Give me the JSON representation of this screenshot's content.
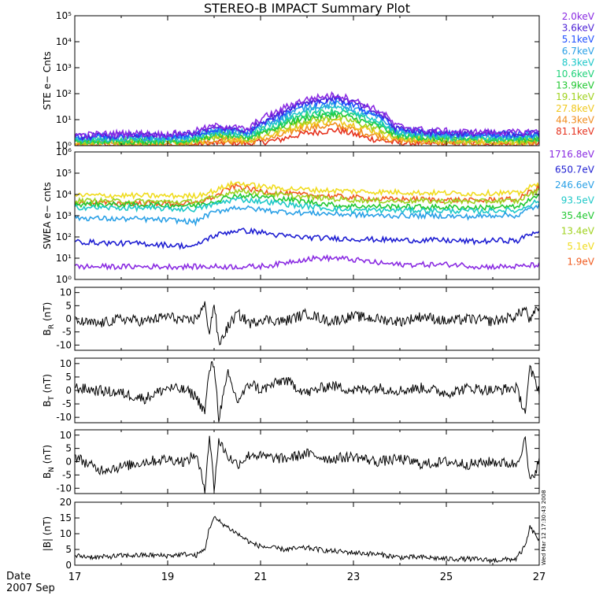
{
  "title": "STEREO-B IMPACT Summary Plot",
  "stamp": "Wed Mar 12 17:30:43 2008",
  "date_label": "Date",
  "date_value": "2007 Sep",
  "chart_data": [
    {
      "id": "ste",
      "type": "line",
      "ylabel": "STE e− Cnts",
      "yscale": "log",
      "ylim": [
        1,
        100000
      ],
      "yticks": [
        "10⁰",
        "10¹",
        "10²",
        "10³",
        "10⁴",
        "10⁵"
      ],
      "xlim": [
        17,
        27
      ],
      "series": [
        {
          "name": "2.0keV",
          "color": "#8a2be2",
          "values": [
            2.5,
            2.8,
            3,
            2.7,
            3.2,
            6,
            4,
            20,
            60,
            90,
            35,
            6,
            4,
            3.5,
            3.3,
            3.2,
            3.5
          ]
        },
        {
          "name": "3.6keV",
          "color": "#4b1fd6",
          "values": [
            2.2,
            2.4,
            2.6,
            2.4,
            2.8,
            5,
            3.5,
            15,
            50,
            70,
            28,
            5,
            3.5,
            3,
            3,
            2.9,
            3
          ]
        },
        {
          "name": "5.1keV",
          "color": "#2050ff",
          "values": [
            2,
            2.2,
            2.3,
            2.2,
            2.5,
            4.5,
            3.2,
            12,
            40,
            55,
            22,
            4.5,
            3.2,
            2.8,
            2.7,
            2.6,
            2.8
          ]
        },
        {
          "name": "6.7keV",
          "color": "#2aa0e6",
          "values": [
            1.8,
            2,
            2.1,
            2,
            2.2,
            4,
            3,
            10,
            30,
            40,
            18,
            4,
            3,
            2.5,
            2.5,
            2.4,
            2.5
          ]
        },
        {
          "name": "8.3keV",
          "color": "#1ec8c8",
          "values": [
            1.6,
            1.8,
            1.9,
            1.8,
            2,
            3.5,
            2.6,
            8,
            22,
            30,
            14,
            3.5,
            2.6,
            2.2,
            2.2,
            2.1,
            2.2
          ]
        },
        {
          "name": "10.6keV",
          "color": "#1fd27a",
          "values": [
            1.5,
            1.6,
            1.7,
            1.6,
            1.8,
            3,
            2.3,
            6,
            16,
            22,
            10,
            3,
            2.3,
            2,
            2,
            1.9,
            2
          ]
        },
        {
          "name": "13.9keV",
          "color": "#22c832",
          "values": [
            1.4,
            1.5,
            1.5,
            1.5,
            1.6,
            2.6,
            2,
            5,
            12,
            16,
            8,
            2.6,
            2,
            1.8,
            1.8,
            1.7,
            1.8
          ]
        },
        {
          "name": "19.1keV",
          "color": "#a0d21e",
          "values": [
            1.3,
            1.35,
            1.4,
            1.35,
            1.45,
            2.2,
            1.8,
            4,
            9,
            12,
            6,
            2.2,
            1.8,
            1.6,
            1.6,
            1.5,
            1.6
          ]
        },
        {
          "name": "27.8keV",
          "color": "#f0c81e",
          "values": [
            1.2,
            1.25,
            1.3,
            1.25,
            1.3,
            1.9,
            1.6,
            3,
            7,
            9,
            4.5,
            1.9,
            1.6,
            1.45,
            1.45,
            1.4,
            1.45
          ]
        },
        {
          "name": "44.3keV",
          "color": "#f08c1e",
          "values": [
            1.1,
            1.12,
            1.15,
            1.12,
            1.15,
            1.6,
            1.4,
            2.2,
            5,
            6,
            3,
            1.6,
            1.4,
            1.3,
            1.3,
            1.25,
            1.3
          ]
        },
        {
          "name": "81.1keV",
          "color": "#e6321e",
          "values": [
            1,
            1.02,
            1.05,
            1.02,
            1.05,
            1.3,
            1.2,
            1.6,
            3,
            4,
            2,
            1.3,
            1.2,
            1.15,
            1.15,
            1.12,
            1.15
          ]
        }
      ]
    },
    {
      "id": "swea",
      "type": "line",
      "ylabel": "SWEA e− cnts",
      "yscale": "log",
      "ylim": [
        1,
        1000000
      ],
      "yticks": [
        "10⁰",
        "10¹",
        "10²",
        "10³",
        "10⁴",
        "10⁵",
        "10⁶"
      ],
      "xlim": [
        17,
        27
      ],
      "series": [
        {
          "name": "1716.8eV",
          "color": "#8a2be2",
          "values": [
            4,
            4,
            4,
            4,
            4,
            4,
            4,
            4,
            4,
            4,
            5,
            8,
            10,
            10,
            8,
            6,
            5,
            5,
            5,
            5,
            4,
            4,
            4,
            5
          ]
        },
        {
          "name": "650.7eV",
          "color": "#1e1ed2",
          "values": [
            60,
            55,
            50,
            50,
            45,
            40,
            35,
            120,
            200,
            180,
            120,
            100,
            90,
            85,
            80,
            75,
            70,
            70,
            70,
            65,
            60,
            70,
            65,
            200
          ]
        },
        {
          "name": "246.6eV",
          "color": "#2aa0e6",
          "values": [
            800,
            750,
            700,
            700,
            650,
            600,
            500,
            1500,
            2500,
            2000,
            1600,
            1400,
            1300,
            1200,
            1100,
            1000,
            1000,
            1000,
            1000,
            900,
            900,
            1100,
            1000,
            3000
          ]
        },
        {
          "name": "93.5eV",
          "color": "#1ec8c8",
          "values": [
            2500,
            2400,
            2300,
            2300,
            2200,
            2100,
            2000,
            3500,
            6000,
            5000,
            4000,
            3000,
            2500,
            2000,
            1800,
            1800,
            1800,
            1800,
            1700,
            1700,
            1600,
            1800,
            1700,
            5000
          ]
        },
        {
          "name": "35.4eV",
          "color": "#22c832",
          "values": [
            3500,
            3400,
            3300,
            3300,
            3200,
            3100,
            3000,
            5000,
            9000,
            8000,
            6500,
            5000,
            4000,
            3000,
            2800,
            2700,
            2700,
            2600,
            2500,
            2500,
            2400,
            2600,
            2500,
            8000
          ]
        },
        {
          "name": "13.4eV",
          "color": "#a0d21e",
          "values": [
            5000,
            5000,
            4800,
            4800,
            4600,
            4500,
            4500,
            7000,
            15000,
            12000,
            10000,
            8000,
            7000,
            6000,
            5500,
            5000,
            5000,
            5000,
            4800,
            4800,
            4600,
            5000,
            4800,
            15000
          ]
        },
        {
          "name": "5.1eV",
          "color": "#f0dc1e",
          "values": [
            9000,
            9000,
            8800,
            8800,
            8600,
            8500,
            8500,
            15000,
            35000,
            25000,
            20000,
            18000,
            16000,
            15000,
            14000,
            13000,
            13000,
            12000,
            12000,
            11000,
            11000,
            12000,
            11000,
            30000
          ]
        },
        {
          "name": "1.9eV",
          "color": "#f05a1e",
          "values": [
            4000,
            4000,
            3900,
            3900,
            3800,
            3700,
            3700,
            8000,
            25000,
            15000,
            12000,
            10000,
            9000,
            8000,
            7000,
            6000,
            6000,
            6000,
            5500,
            5500,
            5000,
            6000,
            5500,
            20000
          ]
        }
      ]
    },
    {
      "id": "br",
      "type": "line",
      "ylabel_main": "B",
      "ylabel_sub": "R",
      "ylabel_unit": "(nT)",
      "ylim": [
        -12,
        12
      ],
      "yticks": [
        -10,
        -5,
        0,
        5,
        10
      ],
      "xlim": [
        17,
        27
      ],
      "x": [
        17,
        17.5,
        18,
        18.5,
        19,
        19.4,
        19.6,
        19.8,
        19.9,
        20,
        20.1,
        20.3,
        20.5,
        20.8,
        21,
        21.5,
        22,
        22.5,
        23,
        23.5,
        24,
        24.5,
        25,
        25.5,
        26,
        26.5,
        26.7,
        26.8,
        27
      ],
      "values": [
        -1,
        -2,
        0,
        -1,
        1,
        -1,
        0,
        5,
        -5,
        6,
        -10,
        -3,
        2,
        -2,
        0,
        -1,
        2,
        -1,
        1,
        0,
        -1,
        1,
        -1,
        0,
        -1,
        1,
        4,
        -1,
        5
      ]
    },
    {
      "id": "bt",
      "type": "line",
      "ylabel_main": "B",
      "ylabel_sub": "T",
      "ylabel_unit": "(nT)",
      "ylim": [
        -12,
        12
      ],
      "yticks": [
        -10,
        -5,
        0,
        5,
        10
      ],
      "xlim": [
        17,
        27
      ],
      "x": [
        17,
        17.5,
        18,
        18.5,
        19,
        19.4,
        19.6,
        19.8,
        19.9,
        20,
        20.1,
        20.3,
        20.5,
        20.8,
        21,
        21.5,
        22,
        22.5,
        23,
        23.5,
        24,
        24.5,
        25,
        25.5,
        26,
        26.5,
        26.7,
        26.8,
        27
      ],
      "values": [
        1,
        0,
        -1,
        -3,
        1,
        0,
        -2,
        -8,
        8,
        10,
        -10,
        6,
        -4,
        3,
        0,
        4,
        -1,
        2,
        0,
        1,
        0,
        1,
        -1,
        1,
        0,
        1,
        -8,
        8,
        0
      ]
    },
    {
      "id": "bn",
      "type": "line",
      "ylabel_main": "B",
      "ylabel_sub": "N",
      "ylabel_unit": "(nT)",
      "ylim": [
        -12,
        12
      ],
      "yticks": [
        -10,
        -5,
        0,
        5,
        10
      ],
      "xlim": [
        17,
        27
      ],
      "x": [
        17,
        17.5,
        18,
        18.5,
        19,
        19.4,
        19.6,
        19.8,
        19.9,
        20,
        20.1,
        20.3,
        20.5,
        20.8,
        21,
        21.5,
        22,
        22.5,
        23,
        23.5,
        24,
        24.5,
        25,
        25.5,
        26,
        26.5,
        26.7,
        26.8,
        27
      ],
      "values": [
        2,
        -3,
        -2,
        0,
        1,
        0,
        3,
        -10,
        10,
        -10,
        8,
        2,
        -1,
        3,
        2,
        1,
        3,
        1,
        2,
        0,
        1,
        -1,
        0,
        -1,
        0,
        -1,
        8,
        -8,
        0
      ]
    },
    {
      "id": "bmag",
      "type": "line",
      "ylabel_main": "|B|",
      "ylabel_sub": "",
      "ylabel_unit": "(nT)",
      "ylim": [
        0,
        20
      ],
      "yticks": [
        0,
        5,
        10,
        15,
        20
      ],
      "xlim": [
        17,
        27
      ],
      "x": [
        17,
        17.5,
        18,
        18.5,
        19,
        19.4,
        19.6,
        19.8,
        19.9,
        20,
        20.2,
        20.4,
        20.6,
        20.8,
        21,
        21.5,
        22,
        22.5,
        23,
        23.5,
        24,
        24.5,
        25,
        25.5,
        26,
        26.5,
        26.7,
        26.8,
        26.9,
        27
      ],
      "values": [
        3,
        2.5,
        3,
        3.2,
        3,
        3.5,
        3,
        5,
        12,
        15,
        13,
        11,
        9,
        7,
        6,
        5,
        5.5,
        4.5,
        4,
        3.5,
        2.5,
        2.5,
        2,
        2,
        1.5,
        2,
        6,
        12,
        10,
        8
      ]
    }
  ],
  "xaxis": {
    "ticks": [
      "17",
      "19",
      "21",
      "23",
      "25",
      "27"
    ],
    "tick_values": [
      17,
      19,
      21,
      23,
      25,
      27
    ]
  }
}
